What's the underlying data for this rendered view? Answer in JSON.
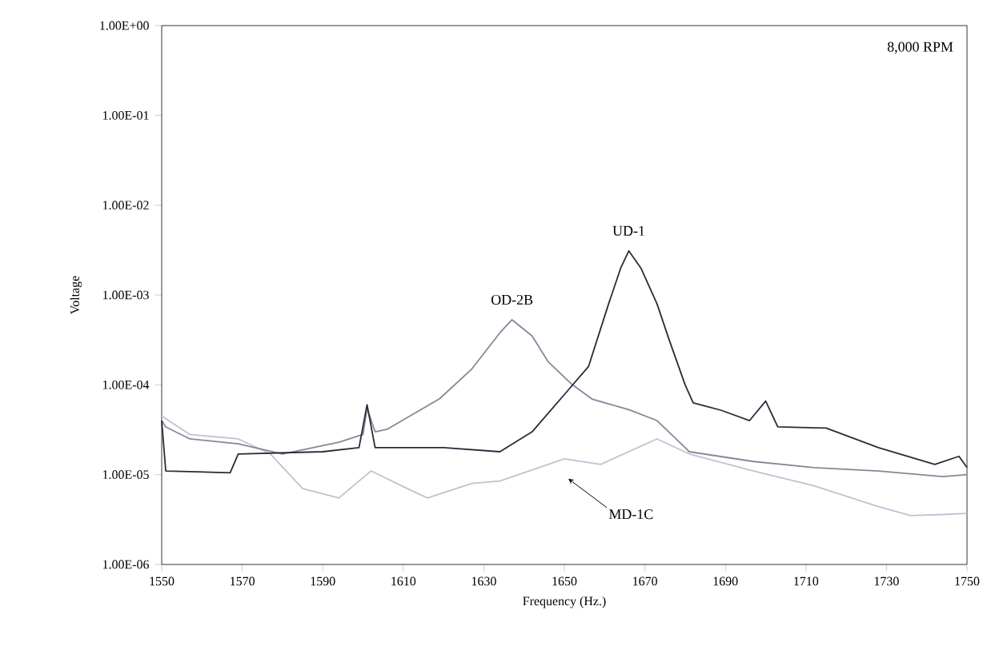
{
  "chart_data": {
    "type": "line",
    "xlabel": "Frequency (Hz.)",
    "ylabel": "Voltage",
    "log": "y",
    "grid": false,
    "marker": "none",
    "line_style": "solid",
    "xlim": [
      1550,
      1750
    ],
    "xticks": [
      1550,
      1570,
      1590,
      1610,
      1630,
      1650,
      1670,
      1690,
      1710,
      1730,
      1750
    ],
    "ylim": [
      1e-06,
      1
    ],
    "yticks": [
      {
        "value": 1e-06,
        "label": "1.00E-06"
      },
      {
        "value": 1e-05,
        "label": "1.00E-05"
      },
      {
        "value": 0.0001,
        "label": "1.00E-04"
      },
      {
        "value": 0.001,
        "label": "1.00E-03"
      },
      {
        "value": 0.01,
        "label": "1.00E-02"
      },
      {
        "value": 0.1,
        "label": "1.00E-01"
      },
      {
        "value": 1,
        "label": "1.00E+00"
      }
    ],
    "series": [
      {
        "color": "#c4c0d2",
        "x": [
          1550,
          1557,
          1569,
          1577,
          1585,
          1594,
          1602,
          1611,
          1616,
          1627,
          1634,
          1650,
          1659,
          1673,
          1681,
          1697,
          1712,
          1728,
          1736,
          1744,
          1750
        ],
        "values": [
          4.5e-05,
          2.8e-05,
          2.5e-05,
          1.7e-05,
          7e-06,
          5.5e-06,
          1.1e-05,
          7e-06,
          5.5e-06,
          8e-06,
          8.5e-06,
          1.5e-05,
          1.3e-05,
          2.5e-05,
          1.7e-05,
          1.1e-05,
          7.5e-06,
          4.4e-06,
          3.5e-06,
          3.6e-06,
          3.7e-06
        ]
      },
      {
        "color": "#8a8598",
        "x": [
          1550,
          1551,
          1557,
          1569,
          1580,
          1594,
          1600,
          1601,
          1603,
          1606,
          1619,
          1627,
          1634,
          1637,
          1642,
          1646,
          1652,
          1657,
          1666,
          1673,
          1680,
          1681,
          1697,
          1712,
          1728,
          1744,
          1750
        ],
        "values": [
          4e-05,
          3.4e-05,
          2.5e-05,
          2.2e-05,
          1.7e-05,
          2.3e-05,
          2.8e-05,
          5.5e-05,
          3e-05,
          3.2e-05,
          7e-05,
          0.00015,
          0.00038,
          0.00053,
          0.00035,
          0.00018,
          0.0001,
          6.9e-05,
          5.3e-05,
          4e-05,
          2e-05,
          1.8e-05,
          1.4e-05,
          1.2e-05,
          1.1e-05,
          9.5e-06,
          1e-05
        ]
      },
      {
        "color": "#2a2a3a",
        "x": [
          1550,
          1551,
          1567,
          1569,
          1590,
          1599,
          1601,
          1603,
          1620,
          1634,
          1642,
          1650,
          1656,
          1661,
          1664,
          1666,
          1669,
          1673,
          1676,
          1680,
          1682,
          1689,
          1696,
          1700,
          1703,
          1715,
          1728,
          1742,
          1748,
          1750
        ],
        "values": [
          4e-05,
          1.1e-05,
          1.05e-05,
          1.7e-05,
          1.8e-05,
          2e-05,
          6e-05,
          2e-05,
          2e-05,
          1.8e-05,
          3e-05,
          7.8e-05,
          0.00016,
          0.0008,
          0.002,
          0.0031,
          0.002,
          0.0008,
          0.00032,
          0.0001,
          6.3e-05,
          5.2e-05,
          4e-05,
          6.6e-05,
          3.4e-05,
          3.3e-05,
          2e-05,
          1.3e-05,
          1.6e-05,
          1.2e-05
        ]
      }
    ],
    "annotations": [
      "8,000 RPM",
      {
        "text": "UD-1",
        "x": 1666,
        "y": 0.0031
      },
      {
        "text": "OD-2B",
        "x": 1637,
        "y": 0.00053
      },
      {
        "text": "MD-1C",
        "x": 1651,
        "y": 9e-06
      }
    ]
  }
}
